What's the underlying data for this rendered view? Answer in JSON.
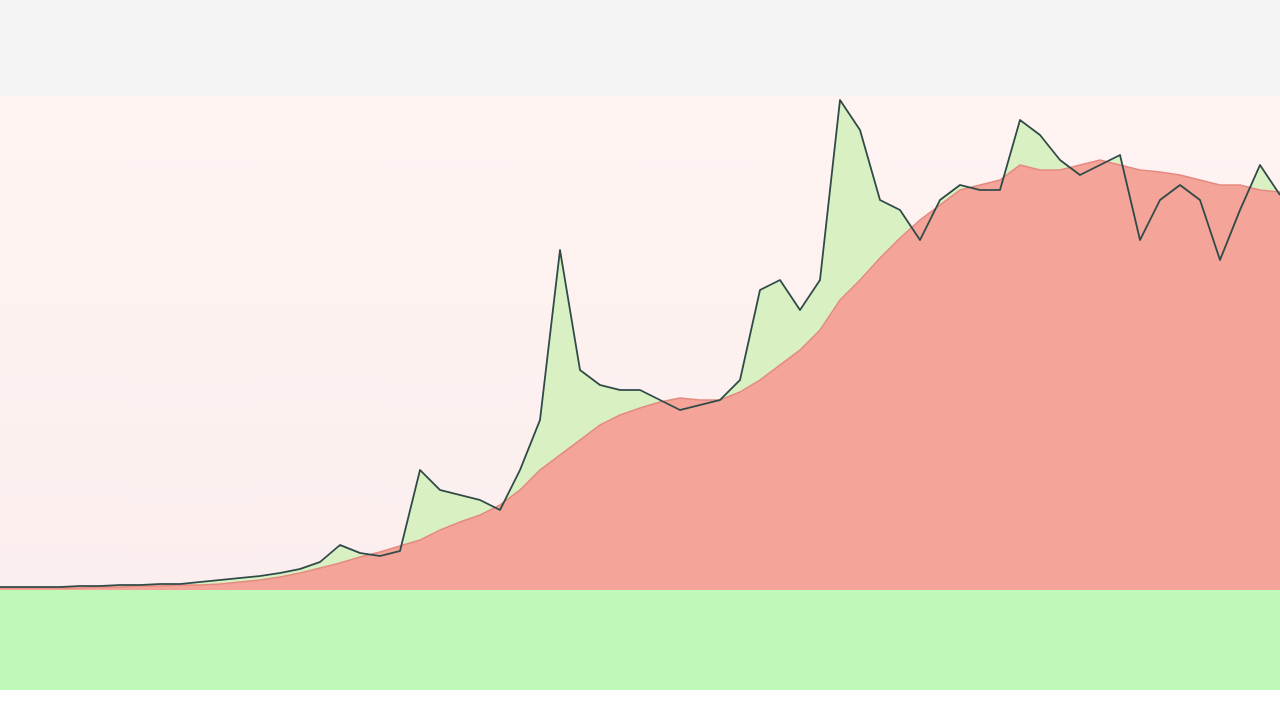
{
  "chart_data": {
    "type": "line",
    "x": [
      0,
      1,
      2,
      3,
      4,
      5,
      6,
      7,
      8,
      9,
      10,
      11,
      12,
      13,
      14,
      15,
      16,
      17,
      18,
      19,
      20,
      21,
      22,
      23,
      24,
      25,
      26,
      27,
      28,
      29,
      30,
      31,
      32,
      33,
      34,
      35,
      36,
      37,
      38,
      39,
      40,
      41,
      42,
      43,
      44,
      45,
      46,
      47,
      48,
      49,
      50,
      51,
      52,
      53,
      54,
      55,
      56,
      57,
      58,
      59,
      60,
      61,
      62,
      63,
      64
    ],
    "xlim": [
      0,
      64
    ],
    "ylim": [
      0,
      570
    ],
    "series": [
      {
        "color": "#f4a498",
        "fill": "#d9f0c2",
        "values": [
          1,
          1,
          1,
          1,
          2,
          2,
          3,
          3,
          4,
          4,
          6,
          8,
          10,
          12,
          15,
          19,
          26,
          43,
          35,
          32,
          37,
          118,
          98,
          93,
          88,
          78,
          118,
          168,
          338,
          218,
          203,
          198,
          198,
          188,
          178,
          183,
          188,
          208,
          298,
          308,
          278,
          308,
          488,
          458,
          388,
          378,
          348,
          388,
          403,
          398,
          398,
          468,
          453,
          428,
          413,
          423,
          433,
          348,
          388,
          403,
          388,
          328,
          378,
          423,
          393
        ]
      },
      {
        "color": "#f4a498",
        "values": [
          0,
          0,
          0,
          0,
          0,
          1,
          1,
          2,
          2,
          3,
          3,
          4,
          6,
          8,
          11,
          15,
          20,
          25,
          31,
          36,
          42,
          48,
          58,
          66,
          73,
          83,
          98,
          118,
          133,
          148,
          163,
          173,
          180,
          186,
          190,
          188,
          188,
          196,
          208,
          223,
          238,
          258,
          288,
          308,
          330,
          350,
          368,
          383,
          398,
          403,
          408,
          423,
          418,
          418,
          423,
          428,
          423,
          418,
          416,
          413,
          408,
          403,
          403,
          398,
          396
        ]
      }
    ],
    "line_color": "#2f4a48"
  }
}
